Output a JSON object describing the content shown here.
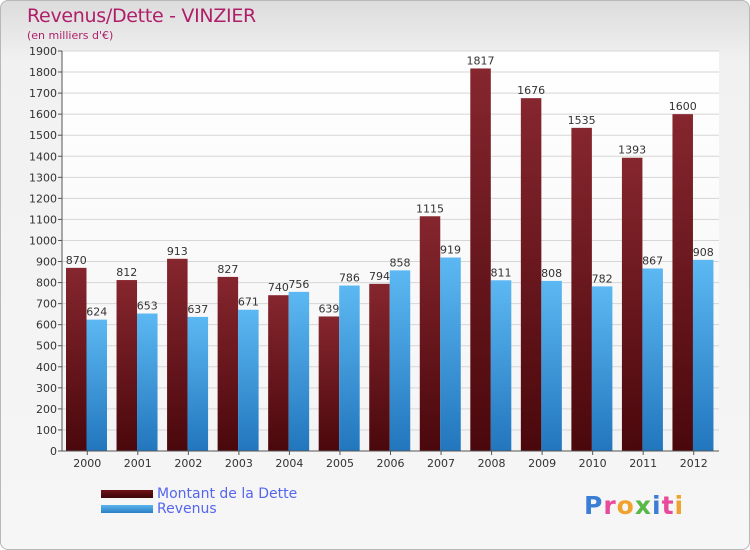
{
  "title": "Revenus/Dette - VINZIER",
  "subtitle": "(en milliers d'€)",
  "logo": {
    "text": "Proxiti",
    "letters": [
      {
        "ch": "P",
        "color": "#3a7fd5"
      },
      {
        "ch": "r",
        "color": "#e84b9c"
      },
      {
        "ch": "o",
        "color": "#f0a22e"
      },
      {
        "ch": "x",
        "color": "#58b848"
      },
      {
        "ch": "i",
        "color": "#3a7fd5"
      },
      {
        "ch": "t",
        "color": "#e84b9c"
      },
      {
        "ch": "i",
        "color": "#f0a22e"
      }
    ]
  },
  "legend": [
    {
      "label": "Montant de la Dette",
      "color": "#6e1218"
    },
    {
      "label": "Revenus",
      "color": "#3b9de0"
    }
  ],
  "chart_data": {
    "type": "bar",
    "categories": [
      "2000",
      "2001",
      "2002",
      "2003",
      "2004",
      "2005",
      "2006",
      "2007",
      "2008",
      "2009",
      "2010",
      "2011",
      "2012"
    ],
    "series": [
      {
        "name": "Montant de la Dette",
        "values": [
          870,
          812,
          913,
          827,
          740,
          639,
          794,
          1115,
          1817,
          1676,
          1535,
          1393,
          1600
        ]
      },
      {
        "name": "Revenus",
        "values": [
          624,
          653,
          637,
          671,
          756,
          786,
          858,
          919,
          811,
          808,
          782,
          867,
          908
        ]
      }
    ],
    "ylim": [
      0,
      1900
    ],
    "yticks": [
      0,
      100,
      200,
      300,
      400,
      500,
      600,
      700,
      800,
      900,
      1000,
      1100,
      1200,
      1300,
      1400,
      1500,
      1600,
      1700,
      1800,
      1900
    ],
    "grid": true,
    "title": "Revenus/Dette - VINZIER",
    "ylabel": "(en milliers d'€)",
    "xlabel": ""
  }
}
